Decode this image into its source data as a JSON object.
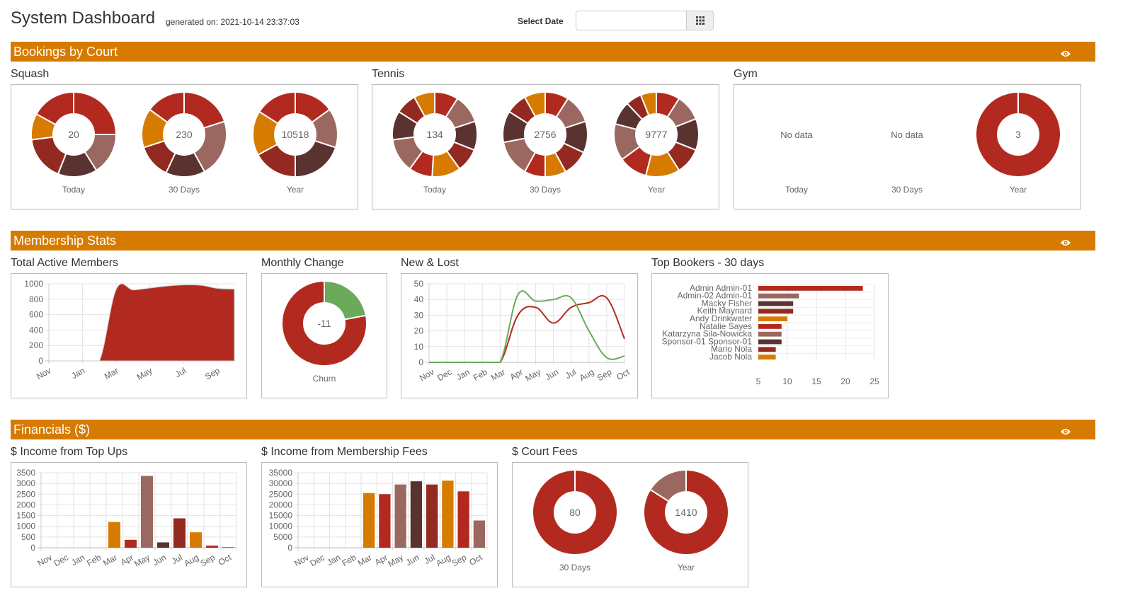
{
  "header": {
    "title": "System Dashboard",
    "generated": "generated on: 2021-10-14 23:37:03",
    "select_date_label": "Select Date",
    "date_value": "",
    "date_placeholder": "",
    "calendar_icon": "calendar-grid-icon"
  },
  "palette": [
    "#b22a1f",
    "#9a6860",
    "#5a3230",
    "#932920",
    "#d67b00"
  ],
  "colors": {
    "section_bar": "#d67b00",
    "green": "#6aaa5a"
  },
  "sections": {
    "bookings": {
      "title": "Bookings by Court",
      "toggle_icon": "eye-icon"
    },
    "membership": {
      "title": "Membership Stats",
      "toggle_icon": "eye-icon"
    },
    "financials": {
      "title": "Financials ($)",
      "toggle_icon": "eye-icon"
    }
  },
  "courts": [
    {
      "name": "Squash",
      "donuts": [
        {
          "label": "Today",
          "center": "20",
          "values": [
            25,
            16,
            15,
            17,
            10,
            17
          ]
        },
        {
          "label": "30 Days",
          "center": "230",
          "values": [
            20,
            22,
            15,
            13,
            15,
            15
          ]
        },
        {
          "label": "Year",
          "center": "10518",
          "values": [
            15,
            15,
            20,
            17,
            17,
            16
          ]
        }
      ]
    },
    {
      "name": "Tennis",
      "donuts": [
        {
          "label": "Today",
          "center": "134",
          "values": [
            9,
            11,
            11,
            9,
            11,
            9,
            13,
            11,
            8,
            8
          ]
        },
        {
          "label": "30 Days",
          "center": "2756",
          "values": [
            9,
            11,
            12,
            10,
            8,
            8,
            14,
            12,
            8,
            8
          ]
        },
        {
          "label": "Year",
          "center": "9777",
          "values": [
            9,
            10,
            12,
            10,
            13,
            11,
            14,
            9,
            6,
            6
          ]
        }
      ]
    },
    {
      "name": "Gym",
      "donuts": [
        {
          "label": "Today",
          "center": "No data",
          "values": []
        },
        {
          "label": "30 Days",
          "center": "No data",
          "values": []
        },
        {
          "label": "Year",
          "center": "3",
          "values": [
            3
          ]
        }
      ]
    }
  ],
  "chart_data": [
    {
      "id": "total-active",
      "title": "Total Active Members",
      "type": "area",
      "x": [
        "Nov",
        "Dec",
        "Jan",
        "Feb",
        "Mar",
        "Apr",
        "May",
        "Jun",
        "Jul",
        "Aug",
        "Sep",
        "Oct"
      ],
      "xticks": [
        "Nov",
        "Jan",
        "Mar",
        "May",
        "Jul",
        "Sep"
      ],
      "values": [
        0,
        0,
        0,
        0,
        930,
        920,
        945,
        970,
        985,
        980,
        940,
        930
      ],
      "ylim": [
        0,
        1000
      ],
      "yticks": [
        0,
        200,
        400,
        600,
        800,
        1000
      ],
      "grid": true,
      "color": "#b22a1f"
    },
    {
      "id": "monthly-change",
      "title": "Monthly Change",
      "type": "pie",
      "center": "-11",
      "label": "Churn",
      "values": [
        22,
        78
      ],
      "colors": [
        "#6aaa5a",
        "#b22a1f"
      ]
    },
    {
      "id": "new-lost",
      "title": "New & Lost",
      "type": "line",
      "x": [
        "Nov",
        "Dec",
        "Jan",
        "Feb",
        "Mar",
        "Apr",
        "May",
        "Jun",
        "Jul",
        "Aug",
        "Sep",
        "Oct"
      ],
      "series": [
        {
          "color": "#b22a1f",
          "values": [
            0,
            0,
            0,
            0,
            0,
            30,
            35,
            25,
            35,
            38,
            41,
            15
          ]
        },
        {
          "color": "#6aaa5a",
          "values": [
            0,
            0,
            0,
            0,
            0,
            43,
            39,
            40,
            41,
            20,
            3,
            4
          ]
        }
      ],
      "ylim": [
        0,
        50
      ],
      "yticks": [
        0,
        10,
        20,
        30,
        40,
        50
      ],
      "grid": true
    },
    {
      "id": "top-bookers",
      "title": "Top Bookers - 30 days",
      "type": "bar",
      "orientation": "horizontal",
      "categories": [
        "Admin Admin-01",
        "Admin-02 Admin-01",
        "Macky Fisher",
        "Keith Maynard",
        "Andy Drinkwater",
        "Natalie Sayes",
        "Katarzyna Sila-Nowicka",
        "Sponsor-01 Sponsor-01",
        "Mario Nola",
        "Jacob Nola"
      ],
      "values": [
        23,
        12,
        11,
        11,
        10,
        9,
        9,
        9,
        8,
        8
      ],
      "xlim": [
        5,
        25
      ],
      "xticks": [
        5,
        10,
        15,
        20,
        25
      ],
      "grid": true
    },
    {
      "id": "topups",
      "title": "$ Income from Top Ups",
      "type": "bar",
      "categories": [
        "Nov",
        "Dec",
        "Jan",
        "Feb",
        "Mar",
        "Apr",
        "May",
        "Jun",
        "Jul",
        "Aug",
        "Sep",
        "Oct"
      ],
      "values": [
        0,
        0,
        0,
        0,
        1200,
        370,
        3350,
        250,
        1370,
        720,
        100,
        30
      ],
      "ylim": [
        0,
        3500
      ],
      "yticks": [
        0,
        500,
        1000,
        1500,
        2000,
        2500,
        3000,
        3500
      ],
      "grid": true
    },
    {
      "id": "membership-fees",
      "title": "$ Income from Membership Fees",
      "type": "bar",
      "categories": [
        "Nov",
        "Dec",
        "Jan",
        "Feb",
        "Mar",
        "Apr",
        "May",
        "Jun",
        "Jul",
        "Aug",
        "Sep",
        "Oct"
      ],
      "values": [
        0,
        0,
        0,
        0,
        25500,
        25000,
        29500,
        31000,
        29500,
        31300,
        26300,
        12700
      ],
      "ylim": [
        0,
        35000
      ],
      "yticks": [
        0,
        5000,
        10000,
        15000,
        20000,
        25000,
        30000,
        35000
      ],
      "grid": true
    },
    {
      "id": "court-fees",
      "title": "$ Court Fees",
      "type": "pie",
      "donuts": [
        {
          "label": "30 Days",
          "center": "80",
          "values": [
            80
          ],
          "colors": [
            "#b22a1f"
          ]
        },
        {
          "label": "Year",
          "center": "1410",
          "values": [
            84,
            16
          ],
          "colors": [
            "#b22a1f",
            "#9a6860"
          ]
        }
      ]
    }
  ]
}
